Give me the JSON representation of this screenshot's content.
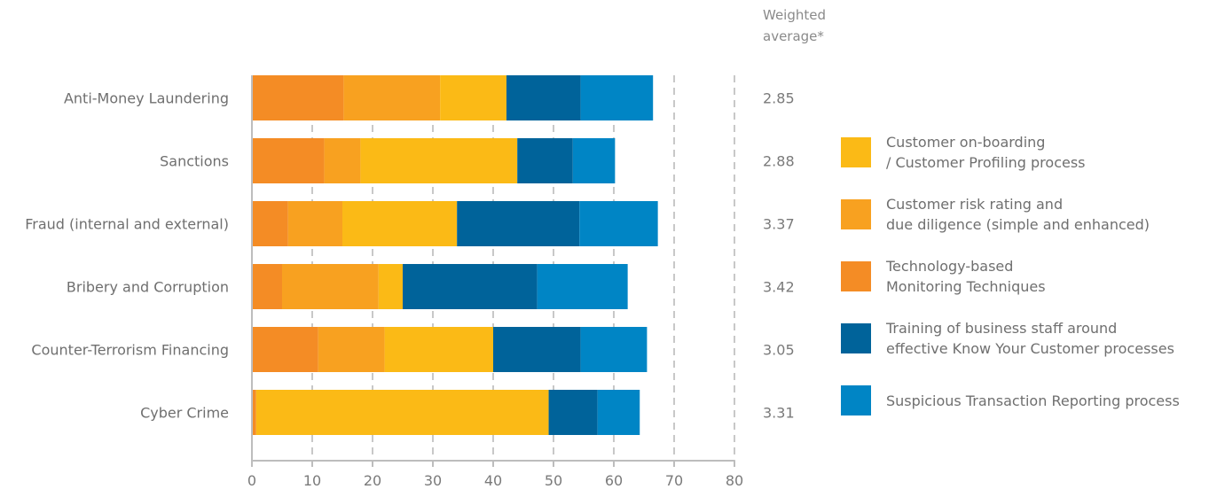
{
  "chart_data": {
    "type": "bar",
    "orientation": "horizontal",
    "stacked": true,
    "title": "",
    "xlabel": "",
    "ylabel": "",
    "xlim": [
      0,
      80
    ],
    "xticks": [
      0,
      10,
      20,
      30,
      40,
      50,
      60,
      70,
      80
    ],
    "grid": "vertical-dashed",
    "legend_position": "right",
    "categories": [
      "Anti-Money Laundering",
      "Sanctions",
      "Fraud (internal and external)",
      "Bribery and Corruption",
      "Counter-Terrorism Financing",
      "Cyber Crime"
    ],
    "series": [
      {
        "name": "Technology-based Monitoring Techniques",
        "legend_lines": [
          "Technology-based",
          "Monitoring Techniques"
        ],
        "color": "#f48c25",
        "values": [
          15.2,
          12.0,
          6.0,
          5.0,
          11.0,
          0.7
        ]
      },
      {
        "name": "Customer risk rating and due diligence (simple and enhanced)",
        "legend_lines": [
          "Customer risk rating and",
          "due diligence (simple and enhanced)"
        ],
        "color": "#f8a120",
        "values": [
          16.0,
          6.0,
          9.0,
          16.0,
          11.0,
          0.0
        ]
      },
      {
        "name": "Customer on-boarding / Customer Profiling process",
        "legend_lines": [
          "Customer on-boarding",
          "/ Customer Profiling process"
        ],
        "color": "#fbba16",
        "values": [
          11.0,
          26.0,
          19.0,
          4.0,
          18.0,
          48.5
        ]
      },
      {
        "name": "Training of business staff around effective Know Your Customer processes",
        "legend_lines": [
          "Training of business staff around",
          "effective Know Your Customer processes"
        ],
        "color": "#00639a",
        "values": [
          12.3,
          9.2,
          20.3,
          22.3,
          14.5,
          8.1
        ]
      },
      {
        "name": "Suspicious Transaction Reporting process",
        "legend_lines": [
          "Suspicious Transaction Reporting process"
        ],
        "color": "#0085c5",
        "values": [
          12.0,
          7.0,
          13.0,
          15.0,
          11.0,
          7.0
        ]
      }
    ],
    "legend_order": [
      2,
      1,
      0,
      3,
      4
    ],
    "weighted_average": {
      "header_lines": [
        "Weighted",
        "average*"
      ],
      "values": [
        "2.85",
        "2.88",
        "3.37",
        "3.42",
        "3.05",
        "3.31"
      ]
    }
  }
}
